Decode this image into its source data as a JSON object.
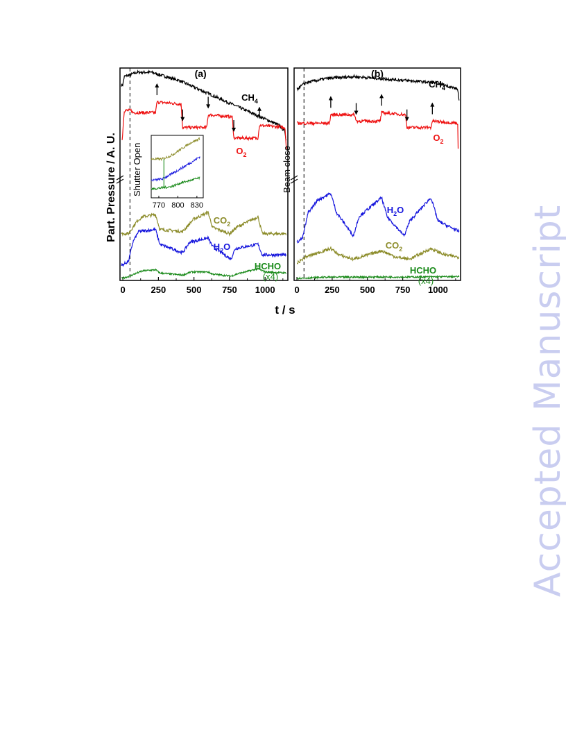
{
  "watermark": "Accepted Manuscript",
  "figure": {
    "ylabel": "Part. Pressure / A. U.",
    "xlabel": "t / s"
  },
  "colors": {
    "CH4": "#000000",
    "O2": "#ee1111",
    "CO2": "#8c8c2a",
    "H2O": "#1515dd",
    "HCHO": "#1a8a1a"
  },
  "chart_data": [
    {
      "panel_label": "(a)",
      "type": "line",
      "xlim": [
        -20,
        1160
      ],
      "ylim": [
        0,
        1
      ],
      "xticks": [
        0,
        250,
        500,
        750,
        1000
      ],
      "annotations": {
        "shutter": "Shutter Open",
        "shutter_time": 50,
        "arrows": [
          {
            "t": 240,
            "dir": "up"
          },
          {
            "t": 420,
            "dir": "down"
          },
          {
            "t": 600,
            "dir": "down"
          },
          {
            "t": 780,
            "dir": "down"
          },
          {
            "t": 960,
            "dir": "up"
          }
        ]
      },
      "series_labels": [
        {
          "key": "CH4",
          "text": "CH",
          "sub": "4"
        },
        {
          "key": "O2",
          "text": "O",
          "sub": "2"
        },
        {
          "key": "CO2",
          "text": "CO",
          "sub": "2"
        },
        {
          "key": "H2O",
          "text": "H",
          "sub": "2",
          "suffix": "O"
        },
        {
          "key": "HCHO",
          "text": "HCHO",
          "note": "(x4)"
        }
      ],
      "series": [
        {
          "key": "CH4",
          "points": [
            [
              -10,
              0.92
            ],
            [
              0,
              0.92
            ],
            [
              10,
              0.96
            ],
            [
              60,
              0.97
            ],
            [
              100,
              0.98
            ],
            [
              200,
              0.98
            ],
            [
              300,
              0.96
            ],
            [
              400,
              0.94
            ],
            [
              500,
              0.91
            ],
            [
              600,
              0.88
            ],
            [
              700,
              0.85
            ],
            [
              800,
              0.82
            ],
            [
              900,
              0.79
            ],
            [
              1000,
              0.76
            ],
            [
              1100,
              0.73
            ],
            [
              1140,
              0.7
            ],
            [
              1150,
              0.65
            ]
          ]
        },
        {
          "key": "O2",
          "points": [
            [
              -5,
              0.66
            ],
            [
              10,
              0.8
            ],
            [
              60,
              0.8
            ],
            [
              70,
              0.79
            ],
            [
              230,
              0.79
            ],
            [
              240,
              0.84
            ],
            [
              410,
              0.83
            ],
            [
              420,
              0.72
            ],
            [
              590,
              0.72
            ],
            [
              600,
              0.78
            ],
            [
              770,
              0.77
            ],
            [
              780,
              0.67
            ],
            [
              950,
              0.67
            ],
            [
              960,
              0.73
            ],
            [
              1140,
              0.72
            ],
            [
              1150,
              0.62
            ]
          ]
        },
        {
          "key": "CO2",
          "points": [
            [
              -10,
              0.22
            ],
            [
              40,
              0.22
            ],
            [
              60,
              0.24
            ],
            [
              100,
              0.28
            ],
            [
              140,
              0.3
            ],
            [
              230,
              0.31
            ],
            [
              260,
              0.24
            ],
            [
              420,
              0.23
            ],
            [
              500,
              0.29
            ],
            [
              600,
              0.32
            ],
            [
              630,
              0.25
            ],
            [
              750,
              0.22
            ],
            [
              800,
              0.25
            ],
            [
              950,
              0.3
            ],
            [
              980,
              0.22
            ],
            [
              1150,
              0.22
            ]
          ]
        },
        {
          "key": "H2O",
          "points": [
            [
              -10,
              0.07
            ],
            [
              40,
              0.09
            ],
            [
              70,
              0.18
            ],
            [
              110,
              0.23
            ],
            [
              230,
              0.24
            ],
            [
              260,
              0.17
            ],
            [
              420,
              0.13
            ],
            [
              470,
              0.18
            ],
            [
              600,
              0.2
            ],
            [
              630,
              0.16
            ],
            [
              760,
              0.1
            ],
            [
              790,
              0.15
            ],
            [
              950,
              0.17
            ],
            [
              980,
              0.12
            ],
            [
              1150,
              0.12
            ]
          ]
        },
        {
          "key": "HCHO",
          "points": [
            [
              -10,
              0.01
            ],
            [
              50,
              0.02
            ],
            [
              80,
              0.03
            ],
            [
              140,
              0.045
            ],
            [
              230,
              0.05
            ],
            [
              260,
              0.035
            ],
            [
              420,
              0.025
            ],
            [
              480,
              0.04
            ],
            [
              600,
              0.04
            ],
            [
              630,
              0.03
            ],
            [
              760,
              0.02
            ],
            [
              800,
              0.03
            ],
            [
              950,
              0.055
            ],
            [
              1000,
              0.04
            ],
            [
              1150,
              0.035
            ]
          ]
        }
      ],
      "inset": {
        "xlim": [
          758,
          840
        ],
        "xticks": [
          770,
          800,
          830
        ],
        "series": [
          {
            "key": "CO2",
            "points": [
              [
                758,
                0.62
              ],
              [
                775,
                0.62
              ],
              [
                790,
                0.68
              ],
              [
                805,
                0.78
              ],
              [
                820,
                0.88
              ],
              [
                835,
                0.95
              ]
            ]
          },
          {
            "key": "H2O",
            "points": [
              [
                758,
                0.28
              ],
              [
                775,
                0.3
              ],
              [
                790,
                0.38
              ],
              [
                805,
                0.47
              ],
              [
                820,
                0.56
              ],
              [
                835,
                0.66
              ]
            ]
          },
          {
            "key": "HCHO",
            "points": [
              [
                758,
                0.14
              ],
              [
                775,
                0.16
              ],
              [
                790,
                0.18
              ],
              [
                805,
                0.24
              ],
              [
                820,
                0.28
              ],
              [
                835,
                0.32
              ]
            ]
          }
        ]
      }
    },
    {
      "panel_label": "(b)",
      "type": "line",
      "xlim": [
        -20,
        1160
      ],
      "ylim": [
        0,
        1
      ],
      "xticks": [
        0,
        250,
        500,
        750,
        1000
      ],
      "annotations": {
        "beam": "Beam close",
        "shutter_time": 50,
        "arrows": [
          {
            "t": 240,
            "dir": "up"
          },
          {
            "t": 420,
            "dir": "down"
          },
          {
            "t": 600,
            "dir": "up"
          },
          {
            "t": 780,
            "dir": "down"
          },
          {
            "t": 960,
            "dir": "up"
          }
        ]
      },
      "series_labels": [
        {
          "key": "CH4",
          "text": "CH",
          "sub": "4"
        },
        {
          "key": "O2",
          "text": "O",
          "sub": "2"
        },
        {
          "key": "H2O",
          "text": "H",
          "sub": "2",
          "suffix": "O"
        },
        {
          "key": "CO2",
          "text": "CO",
          "sub": "2"
        },
        {
          "key": "HCHO",
          "text": "HCHO",
          "note": "(x4)"
        }
      ],
      "series": [
        {
          "key": "CH4",
          "points": [
            [
              0,
              0.9
            ],
            [
              20,
              0.91
            ],
            [
              60,
              0.93
            ],
            [
              200,
              0.95
            ],
            [
              400,
              0.96
            ],
            [
              600,
              0.95
            ],
            [
              800,
              0.94
            ],
            [
              1000,
              0.93
            ],
            [
              1140,
              0.9
            ],
            [
              1150,
              0.84
            ]
          ]
        },
        {
          "key": "O2",
          "points": [
            [
              0,
              0.74
            ],
            [
              20,
              0.74
            ],
            [
              60,
              0.74
            ],
            [
              230,
              0.74
            ],
            [
              240,
              0.78
            ],
            [
              410,
              0.78
            ],
            [
              420,
              0.75
            ],
            [
              590,
              0.75
            ],
            [
              600,
              0.79
            ],
            [
              770,
              0.78
            ],
            [
              780,
              0.72
            ],
            [
              950,
              0.72
            ],
            [
              960,
              0.75
            ],
            [
              1140,
              0.74
            ],
            [
              1145,
              0.53
            ]
          ]
        },
        {
          "key": "H2O",
          "points": [
            [
              0,
              0.18
            ],
            [
              40,
              0.2
            ],
            [
              80,
              0.32
            ],
            [
              150,
              0.38
            ],
            [
              240,
              0.41
            ],
            [
              280,
              0.32
            ],
            [
              400,
              0.21
            ],
            [
              440,
              0.3
            ],
            [
              600,
              0.39
            ],
            [
              640,
              0.3
            ],
            [
              760,
              0.21
            ],
            [
              800,
              0.28
            ],
            [
              950,
              0.39
            ],
            [
              1000,
              0.28
            ],
            [
              1150,
              0.23
            ]
          ]
        },
        {
          "key": "CO2",
          "points": [
            [
              0,
              0.08
            ],
            [
              60,
              0.11
            ],
            [
              150,
              0.13
            ],
            [
              240,
              0.15
            ],
            [
              300,
              0.12
            ],
            [
              400,
              0.1
            ],
            [
              500,
              0.12
            ],
            [
              600,
              0.14
            ],
            [
              700,
              0.11
            ],
            [
              800,
              0.1
            ],
            [
              950,
              0.15
            ],
            [
              1050,
              0.12
            ],
            [
              1150,
              0.11
            ]
          ]
        },
        {
          "key": "HCHO",
          "points": [
            [
              0,
              0.01
            ],
            [
              200,
              0.015
            ],
            [
              500,
              0.016
            ],
            [
              800,
              0.016
            ],
            [
              1150,
              0.018
            ]
          ]
        }
      ]
    }
  ]
}
